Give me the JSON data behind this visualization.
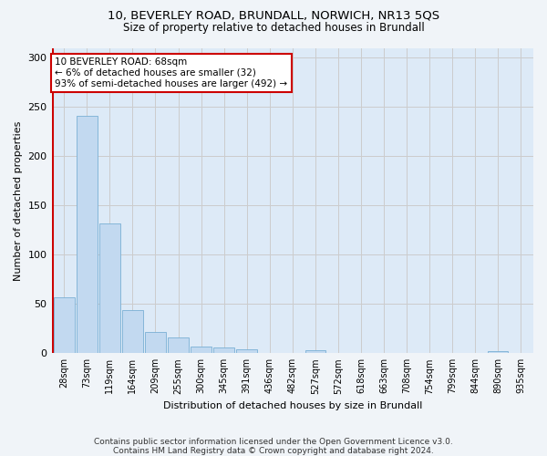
{
  "title_line1": "10, BEVERLEY ROAD, BRUNDALL, NORWICH, NR13 5QS",
  "title_line2": "Size of property relative to detached houses in Brundall",
  "xlabel": "Distribution of detached houses by size in Brundall",
  "ylabel": "Number of detached properties",
  "bar_color": "#c2d9f0",
  "bar_edge_color": "#7aafd4",
  "vline_color": "#cc0000",
  "categories": [
    "28sqm",
    "73sqm",
    "119sqm",
    "164sqm",
    "209sqm",
    "255sqm",
    "300sqm",
    "345sqm",
    "391sqm",
    "436sqm",
    "482sqm",
    "527sqm",
    "572sqm",
    "618sqm",
    "663sqm",
    "708sqm",
    "754sqm",
    "799sqm",
    "844sqm",
    "890sqm",
    "935sqm"
  ],
  "values": [
    57,
    241,
    132,
    44,
    22,
    16,
    7,
    6,
    4,
    0,
    0,
    3,
    0,
    0,
    0,
    0,
    0,
    0,
    0,
    2,
    0
  ],
  "ylim": [
    0,
    310
  ],
  "yticks": [
    0,
    50,
    100,
    150,
    200,
    250,
    300
  ],
  "annotation_text": "10 BEVERLEY ROAD: 68sqm\n← 6% of detached houses are smaller (32)\n93% of semi-detached houses are larger (492) →",
  "annotation_box_facecolor": "#ffffff",
  "annotation_border_color": "#cc0000",
  "grid_color": "#cccccc",
  "plot_bg_color": "#ddeaf7",
  "fig_bg_color": "#f0f4f8",
  "footnote_line1": "Contains HM Land Registry data © Crown copyright and database right 2024.",
  "footnote_line2": "Contains public sector information licensed under the Open Government Licence v3.0."
}
